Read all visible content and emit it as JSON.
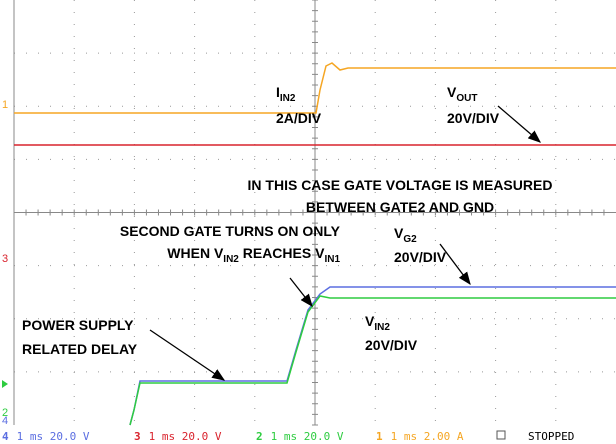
{
  "annotations": {
    "iin2": {
      "main": "I",
      "sub": "IN2",
      "scale": "2A/DIV"
    },
    "vout": {
      "main": "V",
      "sub": "OUT",
      "scale": "20V/DIV"
    },
    "gate_note": {
      "line1": "IN THIS CASE GATE VOLTAGE IS MEASURED",
      "line2": "BETWEEN GATE2 AND GND"
    },
    "second_gate": {
      "line1": "SECOND GATE TURNS ON ONLY",
      "line2_a": "WHEN V",
      "line2_sub1": "IN2",
      "line2_b": " REACHES V",
      "line2_sub2": "IN1"
    },
    "vg2": {
      "main": "V",
      "sub": "G2",
      "scale": "20V/DIV"
    },
    "delay": {
      "line1": "POWER SUPPLY",
      "line2": "RELATED DELAY"
    },
    "vin2": {
      "main": "V",
      "sub": "IN2",
      "scale": "20V/DIV"
    }
  },
  "channel_markers": {
    "ch1": "1",
    "ch3": "3",
    "ch4": "4",
    "ch2": "2"
  },
  "status_bar": {
    "ch4": {
      "num": "4",
      "settings": "1 ms 20.0 V"
    },
    "ch3": {
      "num": "3",
      "settings": "1 ms 20.0 V"
    },
    "ch2": {
      "num": "2",
      "settings": "1 ms 20.0 V"
    },
    "ch1": {
      "num": "1",
      "settings": "1 ms 2.00 A"
    },
    "state": "STOPPED"
  }
}
